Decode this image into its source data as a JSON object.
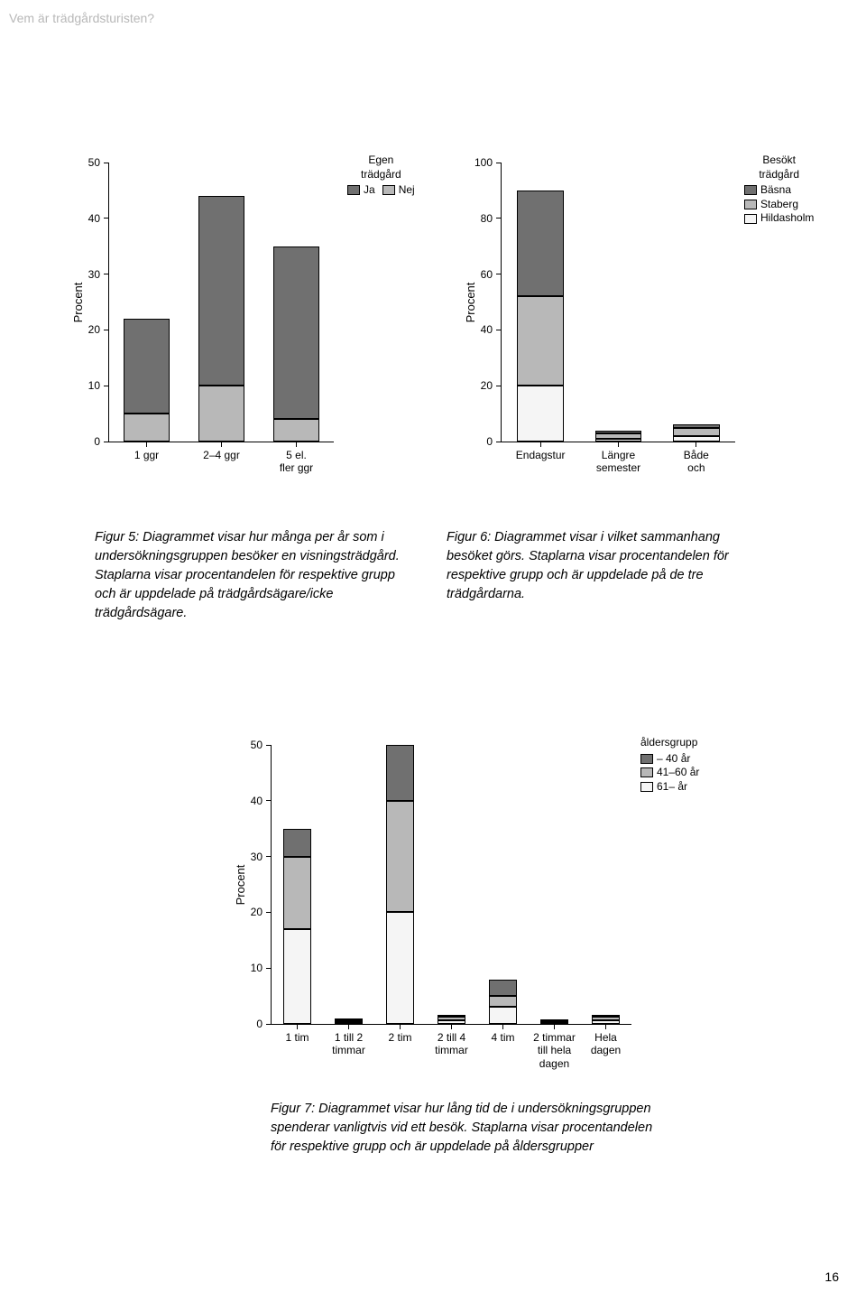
{
  "header": "Vem är trädgårdsturisten?",
  "page_number": "16",
  "colors": {
    "dark": "#707070",
    "mid": "#b8b8b8",
    "light": "#f5f5f5",
    "border": "#000000",
    "text": "#000000"
  },
  "fig5": {
    "type": "stacked-bar",
    "ylabel": "Procent",
    "ylim": [
      0,
      50
    ],
    "ytick_step": 10,
    "categories": [
      "1 ggr",
      "2–4 ggr",
      "5 el. fler ggr"
    ],
    "series": [
      {
        "name": "Nej",
        "color": "#b8b8b8"
      },
      {
        "name": "Ja",
        "color": "#707070"
      }
    ],
    "values": [
      [
        5,
        22
      ],
      [
        10,
        44
      ],
      [
        4,
        35
      ]
    ],
    "legend_title": "Egen\nträdgård",
    "legend_items": [
      "Ja",
      "Nej"
    ],
    "bar_width": 0.62
  },
  "fig6": {
    "type": "stacked-bar",
    "ylabel": "Procent",
    "ylim": [
      0,
      100
    ],
    "ytick_step": 20,
    "categories": [
      "Endagstur",
      "Längre\nsemester",
      "Både och"
    ],
    "series": [
      {
        "name": "Hildasholm",
        "color": "#f5f5f5"
      },
      {
        "name": "Staberg",
        "color": "#b8b8b8"
      },
      {
        "name": "Bäsna",
        "color": "#707070"
      }
    ],
    "values": [
      [
        20,
        52,
        90
      ],
      [
        1,
        3,
        4
      ],
      [
        2,
        5,
        6
      ]
    ],
    "legend_title": "Besökt\nträdgård",
    "legend_items": [
      "Bäsna",
      "Staberg",
      "Hildasholm"
    ],
    "bar_width": 0.6
  },
  "fig7": {
    "type": "stacked-bar",
    "ylabel": "Procent",
    "ylim": [
      0,
      50
    ],
    "ytick_step": 10,
    "categories": [
      "1 tim",
      "1 till 2\ntimmar",
      "2 tim",
      "2 till 4\ntimmar",
      "4 tim",
      "2 timmar\ntill hela\ndagen",
      "Hela\ndagen"
    ],
    "series": [
      {
        "name": "61– år",
        "color": "#f5f5f5"
      },
      {
        "name": "41–60 år",
        "color": "#b8b8b8"
      },
      {
        "name": "– 40 år",
        "color": "#707070"
      }
    ],
    "values": [
      [
        17,
        30,
        35
      ],
      [
        0.3,
        0.7,
        1
      ],
      [
        20,
        40,
        50
      ],
      [
        0.7,
        1.3,
        1.7
      ],
      [
        3,
        5,
        8
      ],
      [
        0.2,
        0.5,
        0.7
      ],
      [
        0.7,
        1.3,
        1.7
      ]
    ],
    "legend_title": "åldersgrupp",
    "legend_items": [
      "– 40 år",
      "41–60 år",
      "61– år"
    ],
    "bar_width": 0.55
  },
  "captions": {
    "fig5": "Figur 5: Diagrammet visar hur många per år som i undersökningsgruppen besöker en visningsträdgård. Staplarna visar procentandelen för respektive grupp och är uppdelade på trädgårdsägare/icke trädgårdsägare.",
    "fig6": "Figur 6: Diagrammet visar i vilket sammanhang besöket görs. Staplarna visar procentandelen för respektive grupp och är uppdelade på de tre trädgårdarna.",
    "fig7": "Figur 7: Diagrammet visar hur lång tid de i undersökningsgruppen spenderar vanligtvis vid ett besök. Staplarna visar procentandelen för respektive grupp och är uppdelade på åldersgrupper"
  }
}
